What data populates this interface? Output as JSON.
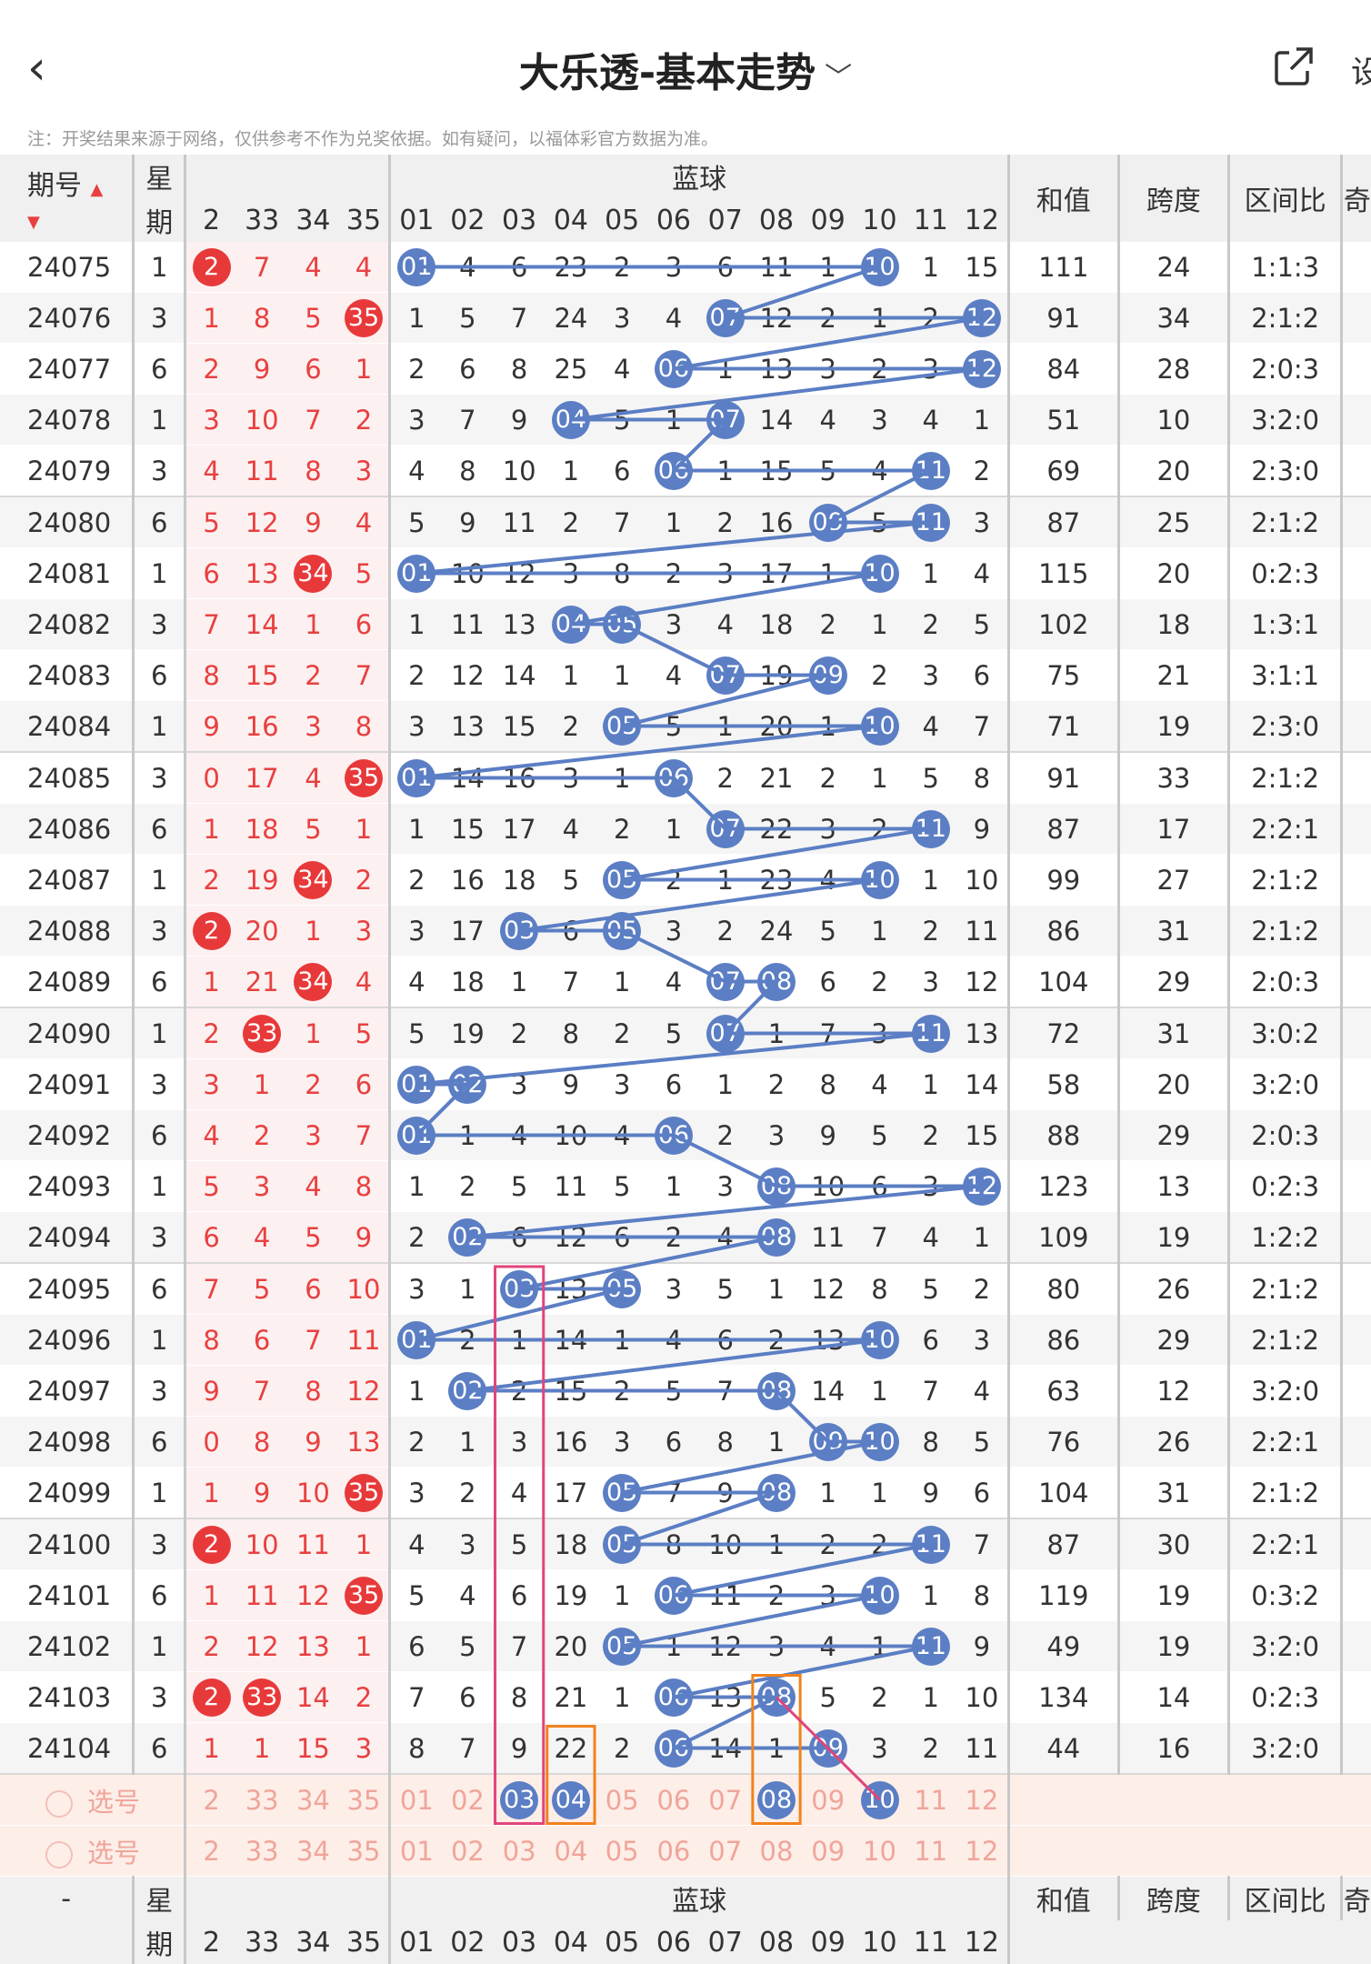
{
  "header": {
    "title": "大乐透-基本走势",
    "back_icon": "chevron-left-icon",
    "share_icon": "share-icon",
    "settings_label": "设"
  },
  "note": "注：开奖结果来源于网络，仅供参考不作为兑奖依据。如有疑问，以福体彩官方数据为准。",
  "columns": {
    "issue": "期号",
    "week_top": "星",
    "week_bottom": "期",
    "blue_group": "蓝球",
    "sum": "和值",
    "span": "跨度",
    "ratio": "区间比",
    "extra": "奇",
    "red_heads": [
      "2",
      "33",
      "34",
      "35"
    ],
    "blue_heads": [
      "01",
      "02",
      "03",
      "04",
      "05",
      "06",
      "07",
      "08",
      "09",
      "10",
      "11",
      "12"
    ]
  },
  "rows": [
    {
      "issue": "24075",
      "week": "1",
      "red": [
        "2",
        "7",
        "4",
        "4"
      ],
      "redhit": [
        0
      ],
      "blue": [
        "01",
        "4",
        "6",
        "23",
        "2",
        "3",
        "6",
        "11",
        "1",
        "10",
        "1",
        "15"
      ],
      "hit": [
        0,
        9
      ],
      "sum": "111",
      "span": "24",
      "ratio": "1:1:3"
    },
    {
      "issue": "24076",
      "week": "3",
      "red": [
        "1",
        "8",
        "5",
        "35"
      ],
      "redhit": [
        3
      ],
      "blue": [
        "1",
        "5",
        "7",
        "24",
        "3",
        "4",
        "07",
        "12",
        "2",
        "1",
        "2",
        "12"
      ],
      "hit": [
        6,
        11
      ],
      "sum": "91",
      "span": "34",
      "ratio": "2:1:2"
    },
    {
      "issue": "24077",
      "week": "6",
      "red": [
        "2",
        "9",
        "6",
        "1"
      ],
      "redhit": [],
      "blue": [
        "2",
        "6",
        "8",
        "25",
        "4",
        "06",
        "1",
        "13",
        "3",
        "2",
        "3",
        "12"
      ],
      "hit": [
        5,
        11
      ],
      "sum": "84",
      "span": "28",
      "ratio": "2:0:3"
    },
    {
      "issue": "24078",
      "week": "1",
      "red": [
        "3",
        "10",
        "7",
        "2"
      ],
      "redhit": [],
      "blue": [
        "3",
        "7",
        "9",
        "04",
        "5",
        "1",
        "07",
        "14",
        "4",
        "3",
        "4",
        "1"
      ],
      "hit": [
        3,
        6
      ],
      "sum": "51",
      "span": "10",
      "ratio": "3:2:0"
    },
    {
      "issue": "24079",
      "week": "3",
      "red": [
        "4",
        "11",
        "8",
        "3"
      ],
      "redhit": [],
      "blue": [
        "4",
        "8",
        "10",
        "1",
        "6",
        "06",
        "1",
        "15",
        "5",
        "4",
        "11",
        "2"
      ],
      "hit": [
        5,
        10
      ],
      "sum": "69",
      "span": "20",
      "ratio": "2:3:0"
    },
    {
      "issue": "24080",
      "week": "6",
      "red": [
        "5",
        "12",
        "9",
        "4"
      ],
      "redhit": [],
      "blue": [
        "5",
        "9",
        "11",
        "2",
        "7",
        "1",
        "2",
        "16",
        "09",
        "5",
        "11",
        "3"
      ],
      "hit": [
        8,
        10
      ],
      "sum": "87",
      "span": "25",
      "ratio": "2:1:2"
    },
    {
      "issue": "24081",
      "week": "1",
      "red": [
        "6",
        "13",
        "34",
        "5"
      ],
      "redhit": [
        2
      ],
      "blue": [
        "01",
        "10",
        "12",
        "3",
        "8",
        "2",
        "3",
        "17",
        "1",
        "10",
        "1",
        "4"
      ],
      "hit": [
        0,
        9
      ],
      "sum": "115",
      "span": "20",
      "ratio": "0:2:3"
    },
    {
      "issue": "24082",
      "week": "3",
      "red": [
        "7",
        "14",
        "1",
        "6"
      ],
      "redhit": [],
      "blue": [
        "1",
        "11",
        "13",
        "04",
        "05",
        "3",
        "4",
        "18",
        "2",
        "1",
        "2",
        "5"
      ],
      "hit": [
        3,
        4
      ],
      "sum": "102",
      "span": "18",
      "ratio": "1:3:1"
    },
    {
      "issue": "24083",
      "week": "6",
      "red": [
        "8",
        "15",
        "2",
        "7"
      ],
      "redhit": [],
      "blue": [
        "2",
        "12",
        "14",
        "1",
        "1",
        "4",
        "07",
        "19",
        "09",
        "2",
        "3",
        "6"
      ],
      "hit": [
        6,
        8
      ],
      "sum": "75",
      "span": "21",
      "ratio": "3:1:1"
    },
    {
      "issue": "24084",
      "week": "1",
      "red": [
        "9",
        "16",
        "3",
        "8"
      ],
      "redhit": [],
      "blue": [
        "3",
        "13",
        "15",
        "2",
        "05",
        "5",
        "1",
        "20",
        "1",
        "10",
        "4",
        "7"
      ],
      "hit": [
        4,
        9
      ],
      "sum": "71",
      "span": "19",
      "ratio": "2:3:0"
    },
    {
      "issue": "24085",
      "week": "3",
      "red": [
        "0",
        "17",
        "4",
        "35"
      ],
      "redhit": [
        3
      ],
      "blue": [
        "01",
        "14",
        "16",
        "3",
        "1",
        "06",
        "2",
        "21",
        "2",
        "1",
        "5",
        "8"
      ],
      "hit": [
        0,
        5
      ],
      "sum": "91",
      "span": "33",
      "ratio": "2:1:2"
    },
    {
      "issue": "24086",
      "week": "6",
      "red": [
        "1",
        "18",
        "5",
        "1"
      ],
      "redhit": [],
      "blue": [
        "1",
        "15",
        "17",
        "4",
        "2",
        "1",
        "07",
        "22",
        "3",
        "2",
        "11",
        "9"
      ],
      "hit": [
        6,
        10
      ],
      "sum": "87",
      "span": "17",
      "ratio": "2:2:1"
    },
    {
      "issue": "24087",
      "week": "1",
      "red": [
        "2",
        "19",
        "34",
        "2"
      ],
      "redhit": [
        2
      ],
      "blue": [
        "2",
        "16",
        "18",
        "5",
        "05",
        "2",
        "1",
        "23",
        "4",
        "10",
        "1",
        "10"
      ],
      "hit": [
        4,
        9
      ],
      "sum": "99",
      "span": "27",
      "ratio": "2:1:2"
    },
    {
      "issue": "24088",
      "week": "3",
      "red": [
        "2",
        "20",
        "1",
        "3"
      ],
      "redhit": [
        0
      ],
      "blue": [
        "3",
        "17",
        "03",
        "6",
        "05",
        "3",
        "2",
        "24",
        "5",
        "1",
        "2",
        "11"
      ],
      "hit": [
        2,
        4
      ],
      "sum": "86",
      "span": "31",
      "ratio": "2:1:2"
    },
    {
      "issue": "24089",
      "week": "6",
      "red": [
        "1",
        "21",
        "34",
        "4"
      ],
      "redhit": [
        2
      ],
      "blue": [
        "4",
        "18",
        "1",
        "7",
        "1",
        "4",
        "07",
        "08",
        "6",
        "2",
        "3",
        "12"
      ],
      "hit": [
        6,
        7
      ],
      "sum": "104",
      "span": "29",
      "ratio": "2:0:3"
    },
    {
      "issue": "24090",
      "week": "1",
      "red": [
        "2",
        "33",
        "1",
        "5"
      ],
      "redhit": [
        1
      ],
      "blue": [
        "5",
        "19",
        "2",
        "8",
        "2",
        "5",
        "07",
        "1",
        "7",
        "3",
        "11",
        "13"
      ],
      "hit": [
        6,
        10
      ],
      "sum": "72",
      "span": "31",
      "ratio": "3:0:2"
    },
    {
      "issue": "24091",
      "week": "3",
      "red": [
        "3",
        "1",
        "2",
        "6"
      ],
      "redhit": [],
      "blue": [
        "01",
        "02",
        "3",
        "9",
        "3",
        "6",
        "1",
        "2",
        "8",
        "4",
        "1",
        "14"
      ],
      "hit": [
        0,
        1
      ],
      "sum": "58",
      "span": "20",
      "ratio": "3:2:0"
    },
    {
      "issue": "24092",
      "week": "6",
      "red": [
        "4",
        "2",
        "3",
        "7"
      ],
      "redhit": [],
      "blue": [
        "01",
        "1",
        "4",
        "10",
        "4",
        "06",
        "2",
        "3",
        "9",
        "5",
        "2",
        "15"
      ],
      "hit": [
        0,
        5
      ],
      "sum": "88",
      "span": "29",
      "ratio": "2:0:3"
    },
    {
      "issue": "24093",
      "week": "1",
      "red": [
        "5",
        "3",
        "4",
        "8"
      ],
      "redhit": [],
      "blue": [
        "1",
        "2",
        "5",
        "11",
        "5",
        "1",
        "3",
        "08",
        "10",
        "6",
        "3",
        "12"
      ],
      "hit": [
        7,
        11
      ],
      "sum": "123",
      "span": "13",
      "ratio": "0:2:3"
    },
    {
      "issue": "24094",
      "week": "3",
      "red": [
        "6",
        "4",
        "5",
        "9"
      ],
      "redhit": [],
      "blue": [
        "2",
        "02",
        "6",
        "12",
        "6",
        "2",
        "4",
        "08",
        "11",
        "7",
        "4",
        "1"
      ],
      "hit": [
        1,
        7
      ],
      "sum": "109",
      "span": "19",
      "ratio": "1:2:2"
    },
    {
      "issue": "24095",
      "week": "6",
      "red": [
        "7",
        "5",
        "6",
        "10"
      ],
      "redhit": [],
      "blue": [
        "3",
        "1",
        "03",
        "13",
        "05",
        "3",
        "5",
        "1",
        "12",
        "8",
        "5",
        "2"
      ],
      "hit": [
        2,
        4
      ],
      "sum": "80",
      "span": "26",
      "ratio": "2:1:2"
    },
    {
      "issue": "24096",
      "week": "1",
      "red": [
        "8",
        "6",
        "7",
        "11"
      ],
      "redhit": [],
      "blue": [
        "01",
        "2",
        "1",
        "14",
        "1",
        "4",
        "6",
        "2",
        "13",
        "10",
        "6",
        "3"
      ],
      "hit": [
        0,
        9
      ],
      "sum": "86",
      "span": "29",
      "ratio": "2:1:2"
    },
    {
      "issue": "24097",
      "week": "3",
      "red": [
        "9",
        "7",
        "8",
        "12"
      ],
      "redhit": [],
      "blue": [
        "1",
        "02",
        "2",
        "15",
        "2",
        "5",
        "7",
        "08",
        "14",
        "1",
        "7",
        "4"
      ],
      "hit": [
        1,
        7
      ],
      "sum": "63",
      "span": "12",
      "ratio": "3:2:0"
    },
    {
      "issue": "24098",
      "week": "6",
      "red": [
        "0",
        "8",
        "9",
        "13"
      ],
      "redhit": [],
      "blue": [
        "2",
        "1",
        "3",
        "16",
        "3",
        "6",
        "8",
        "1",
        "09",
        "10",
        "8",
        "5"
      ],
      "hit": [
        8,
        9
      ],
      "sum": "76",
      "span": "26",
      "ratio": "2:2:1"
    },
    {
      "issue": "24099",
      "week": "1",
      "red": [
        "1",
        "9",
        "10",
        "35"
      ],
      "redhit": [
        3
      ],
      "blue": [
        "3",
        "2",
        "4",
        "17",
        "05",
        "7",
        "9",
        "08",
        "1",
        "1",
        "9",
        "6"
      ],
      "hit": [
        4,
        7
      ],
      "sum": "104",
      "span": "31",
      "ratio": "2:1:2"
    },
    {
      "issue": "24100",
      "week": "3",
      "red": [
        "2",
        "10",
        "11",
        "1"
      ],
      "redhit": [
        0
      ],
      "blue": [
        "4",
        "3",
        "5",
        "18",
        "05",
        "8",
        "10",
        "1",
        "2",
        "2",
        "11",
        "7"
      ],
      "hit": [
        4,
        10
      ],
      "sum": "87",
      "span": "30",
      "ratio": "2:2:1"
    },
    {
      "issue": "24101",
      "week": "6",
      "red": [
        "1",
        "11",
        "12",
        "35"
      ],
      "redhit": [
        3
      ],
      "blue": [
        "5",
        "4",
        "6",
        "19",
        "1",
        "06",
        "11",
        "2",
        "3",
        "10",
        "1",
        "8"
      ],
      "hit": [
        5,
        9
      ],
      "sum": "119",
      "span": "19",
      "ratio": "0:3:2"
    },
    {
      "issue": "24102",
      "week": "1",
      "red": [
        "2",
        "12",
        "13",
        "1"
      ],
      "redhit": [],
      "blue": [
        "6",
        "5",
        "7",
        "20",
        "05",
        "1",
        "12",
        "3",
        "4",
        "1",
        "11",
        "9"
      ],
      "hit": [
        4,
        10
      ],
      "sum": "49",
      "span": "19",
      "ratio": "3:2:0"
    },
    {
      "issue": "24103",
      "week": "3",
      "red": [
        "2",
        "33",
        "14",
        "2"
      ],
      "redhit": [
        0,
        1
      ],
      "blue": [
        "7",
        "6",
        "8",
        "21",
        "1",
        "06",
        "13",
        "08",
        "5",
        "2",
        "1",
        "10"
      ],
      "hit": [
        5,
        7
      ],
      "sum": "134",
      "span": "14",
      "ratio": "0:2:3"
    },
    {
      "issue": "24104",
      "week": "6",
      "red": [
        "1",
        "1",
        "15",
        "3"
      ],
      "redhit": [],
      "blue": [
        "8",
        "7",
        "9",
        "22",
        "2",
        "06",
        "14",
        "1",
        "09",
        "3",
        "2",
        "11"
      ],
      "hit": [
        5,
        8
      ],
      "sum": "44",
      "span": "16",
      "ratio": "3:2:0"
    }
  ],
  "pick_rows": [
    {
      "label": "选号",
      "red": [
        "2",
        "33",
        "34",
        "35"
      ],
      "blue": [
        "01",
        "02",
        "03",
        "04",
        "05",
        "06",
        "07",
        "08",
        "09",
        "10",
        "11",
        "12"
      ],
      "sel": [
        2,
        3,
        7,
        9
      ]
    },
    {
      "label": "选号",
      "red": [
        "2",
        "33",
        "34",
        "35"
      ],
      "blue": [
        "01",
        "02",
        "03",
        "04",
        "05",
        "06",
        "07",
        "08",
        "09",
        "10",
        "11",
        "12"
      ],
      "sel": []
    }
  ],
  "footer": {
    "issue": "-"
  },
  "colors": {
    "blue_ball": "#5b7ec4",
    "red_ball": "#e8393a",
    "pink_box": "#e0457b",
    "orange_box": "#f0821e"
  }
}
